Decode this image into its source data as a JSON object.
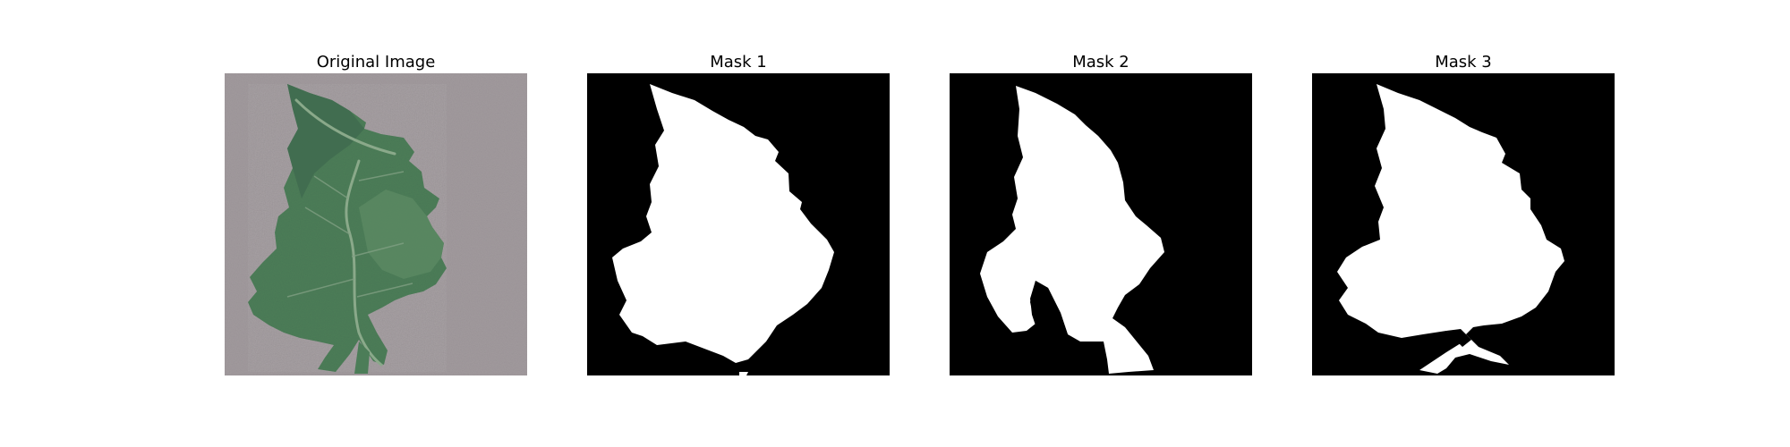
{
  "figure": {
    "panels": [
      {
        "title": "Original Image",
        "image_kind": "tomato-leaf-photo",
        "colors": {
          "background": "#a19a9d",
          "leaf_dark": "#3f6b4f",
          "leaf": "#4c7d58",
          "leaf_light": "#5b8a63",
          "vein": "#8aa98a"
        }
      },
      {
        "title": "Mask 1",
        "image_kind": "binary-mask",
        "colors": {
          "background": "#000000",
          "foreground": "#ffffff"
        }
      },
      {
        "title": "Mask 2",
        "image_kind": "binary-mask",
        "colors": {
          "background": "#000000",
          "foreground": "#ffffff"
        }
      },
      {
        "title": "Mask 3",
        "image_kind": "binary-mask",
        "colors": {
          "background": "#000000",
          "foreground": "#ffffff"
        }
      }
    ]
  }
}
